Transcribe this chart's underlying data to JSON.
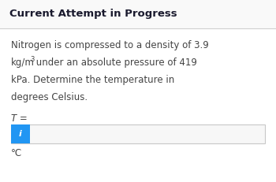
{
  "title": "Current Attempt in Progress",
  "title_fontsize": 9.5,
  "title_fontweight": "bold",
  "body_line1": "Nitrogen is compressed to a density of 3.9",
  "body_line2_a": "kg/m",
  "body_line2_sup": "3",
  "body_line2_b": " under an absolute pressure of 419",
  "body_line3": "kPa. Determine the temperature in",
  "body_line4": "degrees Celsius.",
  "label_T": "T =",
  "unit": "°C",
  "body_fontsize": 8.5,
  "sup_fontsize": 6.0,
  "label_fontsize": 8.5,
  "unit_fontsize": 8.5,
  "bg_color": "#ffffff",
  "divider_color": "#d0d0d0",
  "input_box_fill": "#f7f7f7",
  "input_box_border": "#c8c8c8",
  "info_btn_color": "#2196F3",
  "info_btn_text": "i",
  "info_btn_fontsize": 8.0,
  "text_color": "#444444",
  "title_text_color": "#1a1a2e",
  "title_bg": "#f9f9f9",
  "white": "#ffffff"
}
